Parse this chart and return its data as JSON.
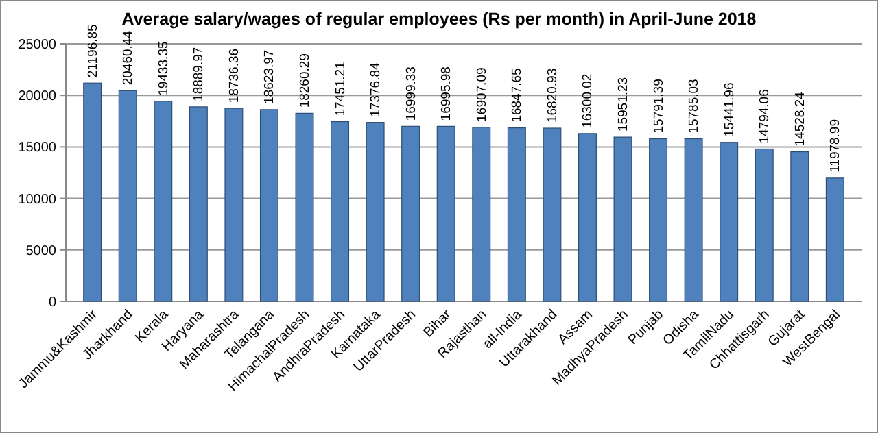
{
  "chart_data": {
    "type": "bar",
    "title": "Average salary/wages of regular employees (Rs per month) in April-June 2018",
    "categories": [
      "Jammu&Kashmir",
      "Jharkhand",
      "Kerala",
      "Haryana",
      "Maharashtra",
      "Telangana",
      "HimachalPradesh",
      "AndhraPradesh",
      "Karnataka",
      "UttarPradesh",
      "Bihar",
      "Rajasthan",
      "all-India",
      "Uttarakhand",
      "Assam",
      "MadhyaPradesh",
      "Punjab",
      "Odisha",
      "TamilNadu",
      "Chhattisgarh",
      "Gujarat",
      "WestBengal"
    ],
    "values": [
      21196.85,
      20460.44,
      19433.35,
      18889.97,
      18736.36,
      18623.97,
      18260.29,
      17451.21,
      17376.84,
      16999.33,
      16995.98,
      16907.09,
      16847.65,
      16820.93,
      16300.02,
      15951.23,
      15791.39,
      15785.03,
      15441.96,
      14794.06,
      14528.24,
      11978.99
    ],
    "color": "#4f81bd",
    "ylim": [
      0,
      25000
    ],
    "yticks": [
      0,
      5000,
      10000,
      15000,
      20000,
      25000
    ],
    "grid": "y",
    "data_labels": true
  }
}
